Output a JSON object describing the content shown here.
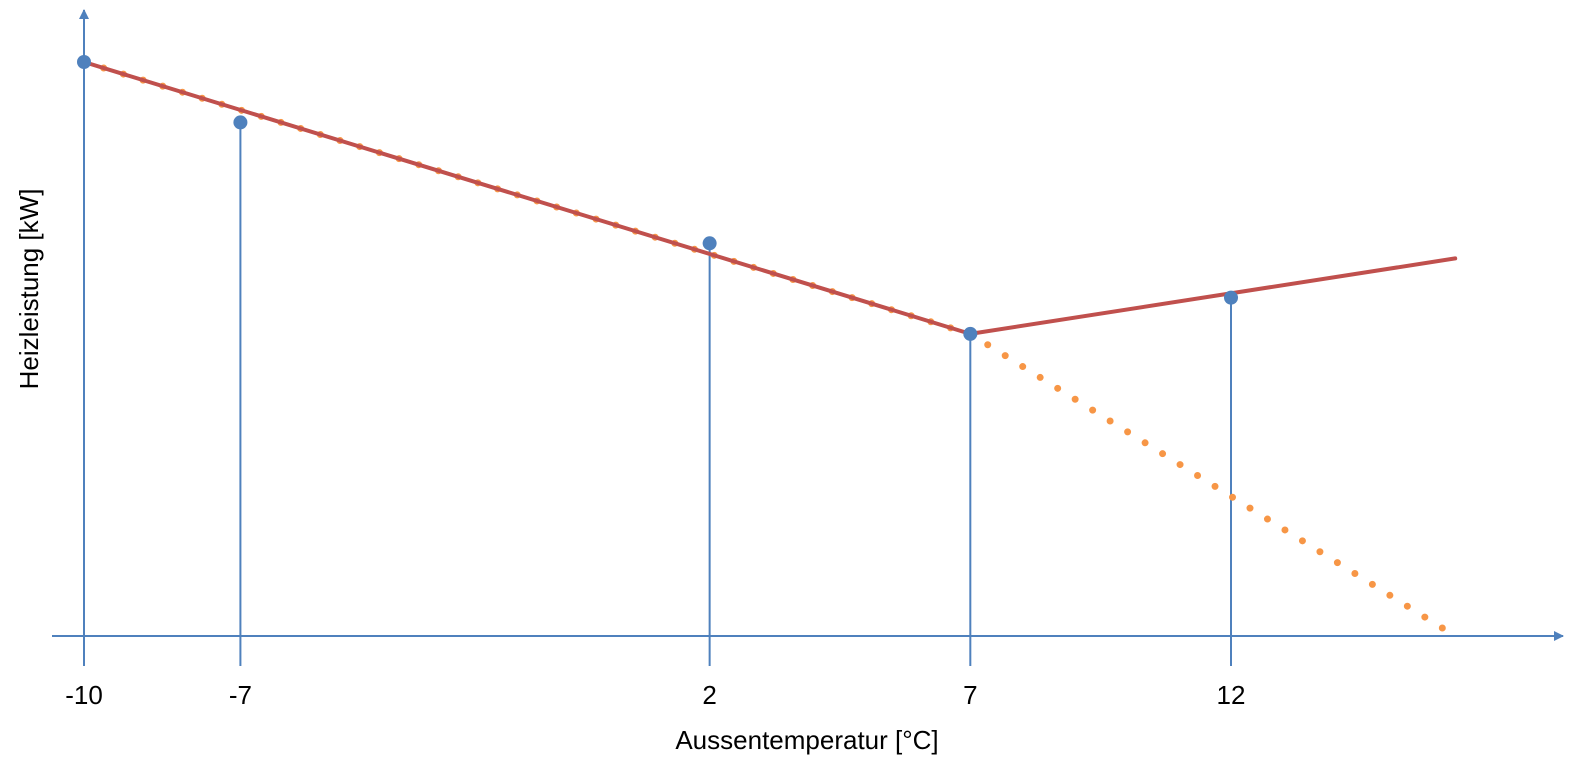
{
  "chart_data": {
    "type": "line",
    "title": "",
    "xlabel": "Aussentemperatur [°C]",
    "ylabel": "Heizleistung [kW]",
    "x_ticks": [
      -10,
      -7,
      2,
      7,
      12
    ],
    "x_tick_labels": [
      "-10",
      "-7",
      "2",
      "7",
      "12"
    ],
    "xlim": [
      -10,
      16.3
    ],
    "y_ticks_shown": false,
    "series": [
      {
        "x": [
          -10,
          7,
          16.3
        ],
        "y": [
          95,
          50,
          62.5
        ],
        "color": "#c0504d",
        "style": "solid"
      },
      {
        "x": [
          -10,
          7,
          16.3
        ],
        "y": [
          95,
          50,
          0
        ],
        "color": "#f79646",
        "style": "dotted"
      }
    ],
    "markers": {
      "x": [
        -10,
        -7,
        2,
        7,
        12
      ],
      "y": [
        95,
        85,
        65,
        50,
        56
      ],
      "color": "#4f81bd"
    },
    "drop_lines_color": "#4f81bd",
    "axis_color": "#4f81bd",
    "grid": false,
    "legend": "none"
  }
}
